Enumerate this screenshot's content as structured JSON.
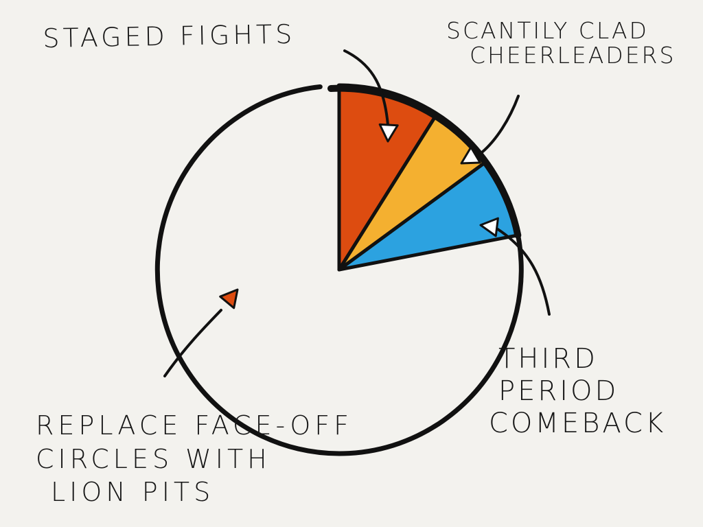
{
  "chart_data": {
    "type": "pie",
    "title": "",
    "slices": [
      {
        "label": "STAGED FIGHTS",
        "value": 9,
        "color": "#dd4c10"
      },
      {
        "label": "SCANTILY CLAD CHEERLEADERS",
        "value": 6,
        "color": "#f4b030"
      },
      {
        "label": "THIRD PERIOD COMEBACK",
        "value": 7,
        "color": "#2ca2e0"
      },
      {
        "label": "REPLACE FACE-OFF CIRCLES WITH LION PITS",
        "value": 78,
        "color": "#f3f2ee"
      }
    ]
  },
  "labels": {
    "staged": [
      "STAGED FIGHTS"
    ],
    "cheer": [
      "SCANTILY CLAD",
      "CHEERLEADERS"
    ],
    "third": [
      "THIRD",
      "PERIOD",
      "COMEBACK"
    ],
    "lion": [
      "REPLACE FACE-OFF",
      "CIRCLES WITH",
      "LION PITS"
    ]
  },
  "colors": {
    "background": "#f3f2ee",
    "ink": "#111111",
    "accent": "#dd4c10"
  }
}
